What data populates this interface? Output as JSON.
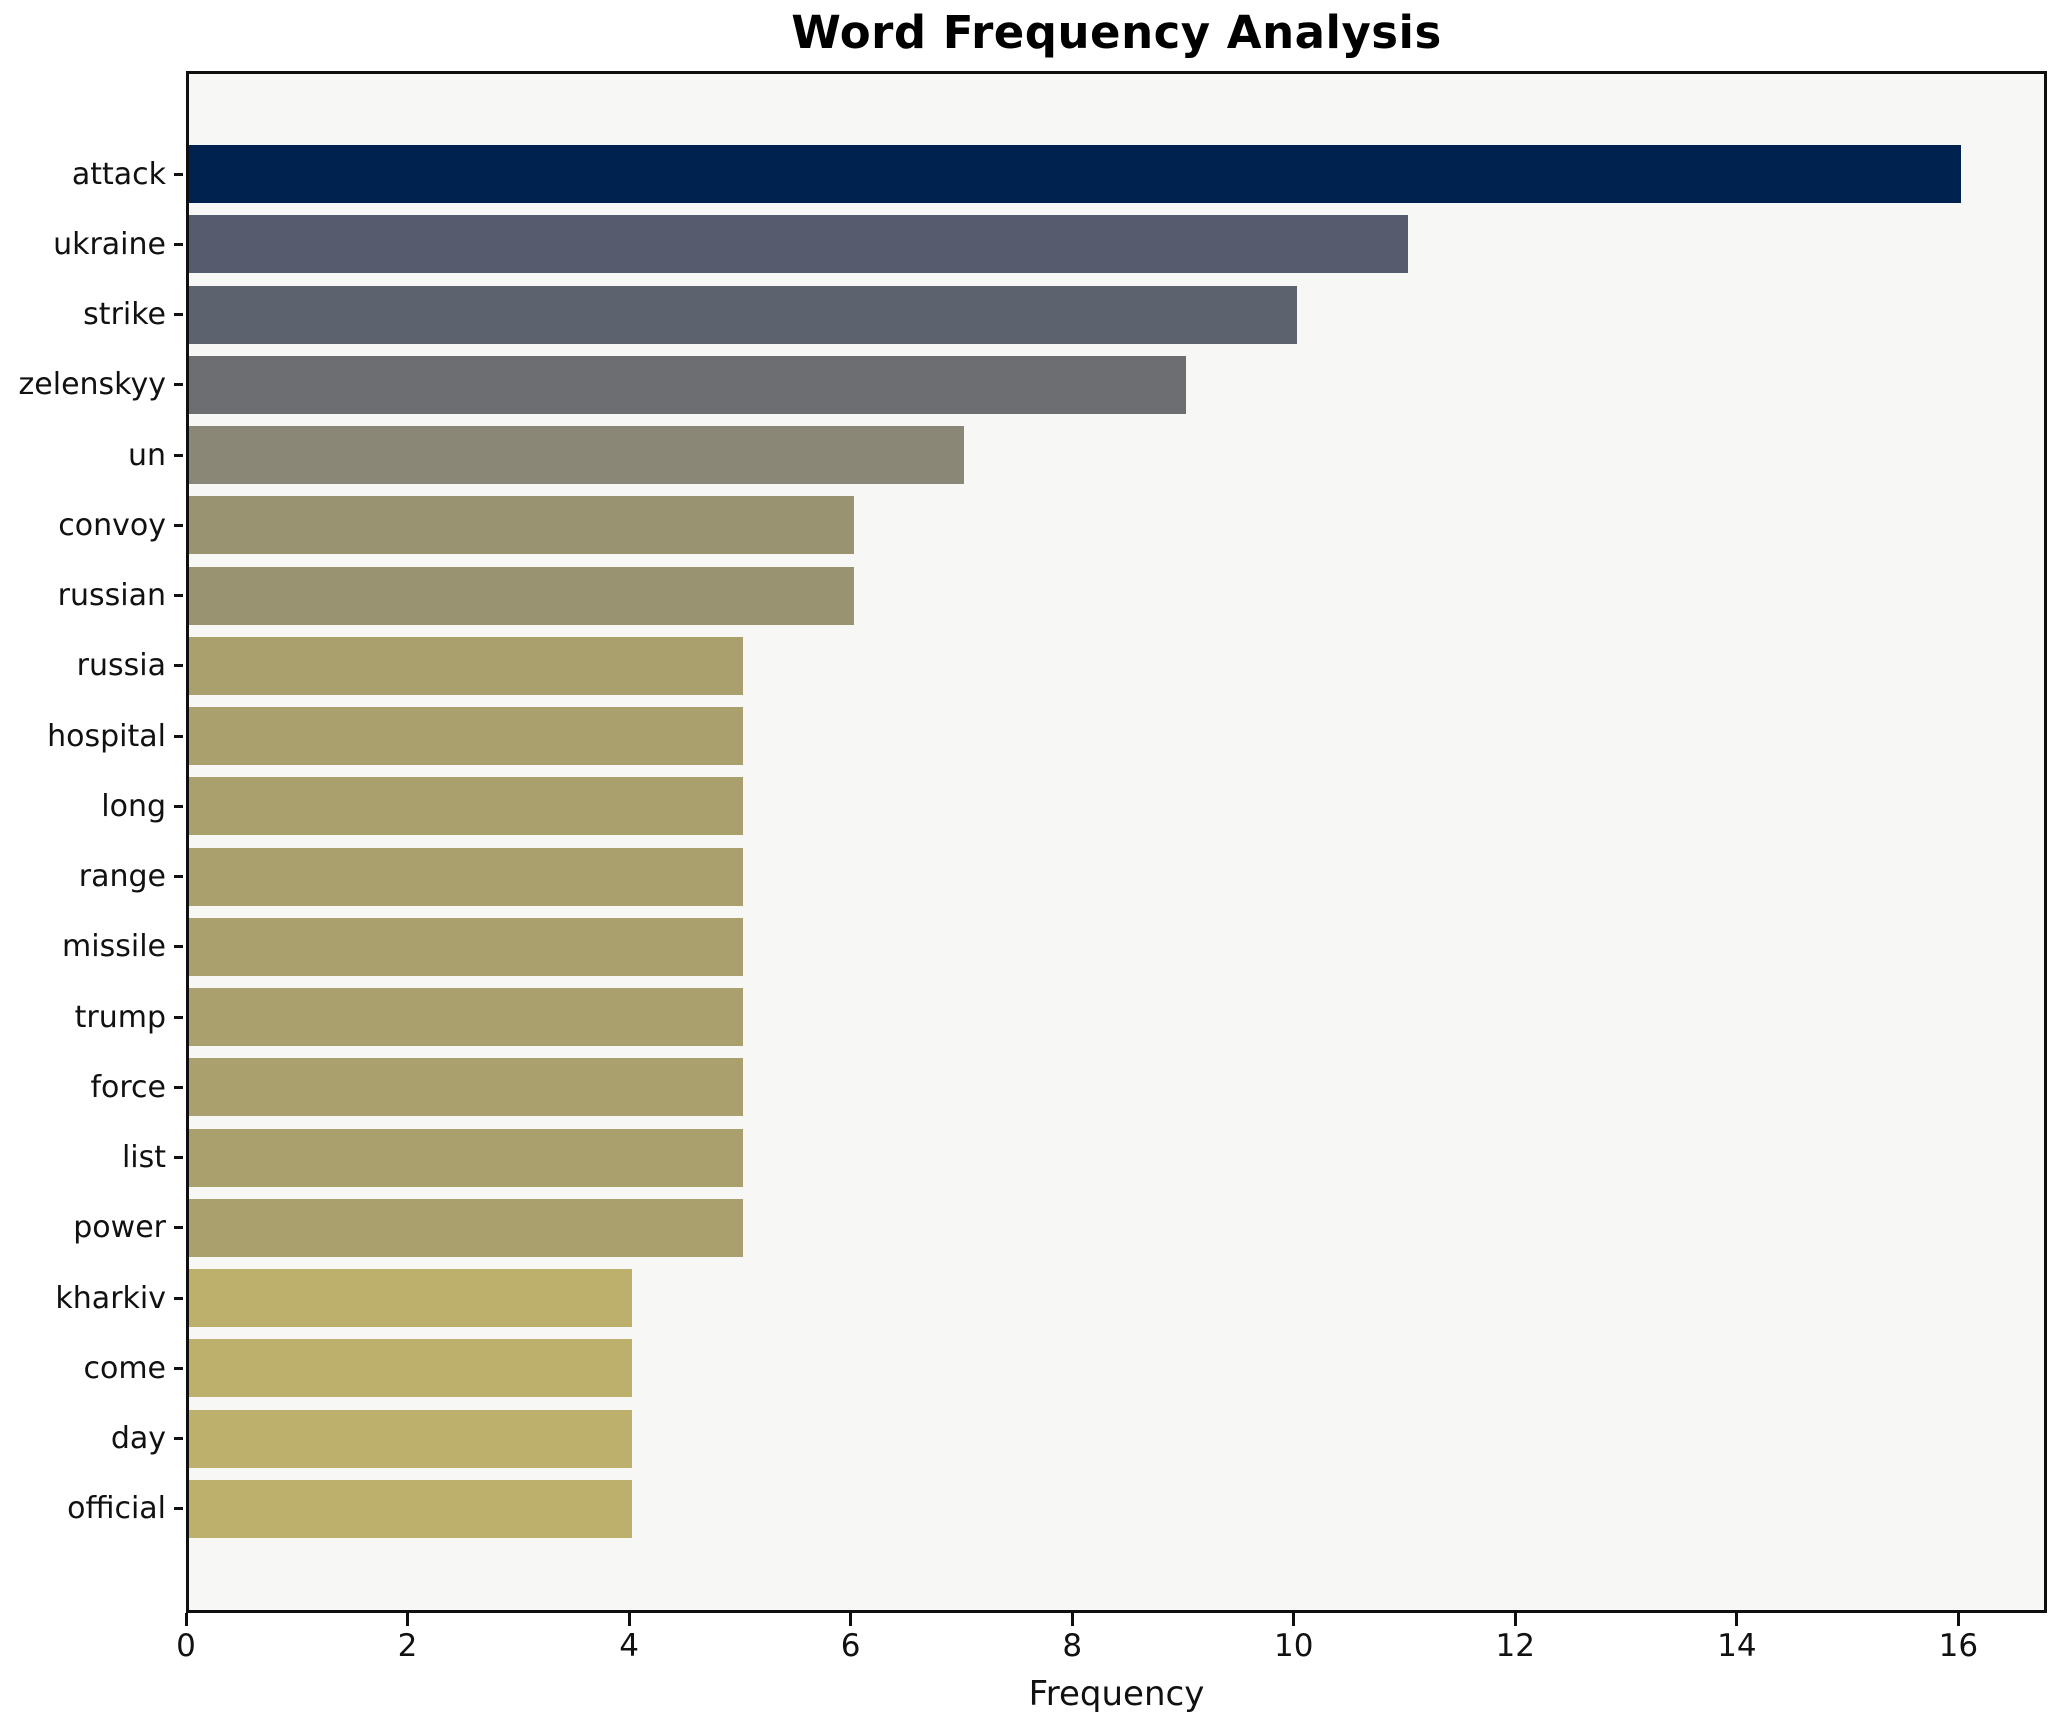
{
  "title": "Word Frequency Analysis",
  "chart_data": {
    "type": "bar",
    "orientation": "horizontal",
    "title": "Word Frequency Analysis",
    "xlabel": "Frequency",
    "ylabel": "",
    "categories": [
      "attack",
      "ukraine",
      "strike",
      "zelenskyy",
      "un",
      "convoy",
      "russian",
      "russia",
      "hospital",
      "long",
      "range",
      "missile",
      "trump",
      "force",
      "list",
      "power",
      "kharkiv",
      "come",
      "day",
      "official"
    ],
    "values": [
      16,
      11,
      10,
      9,
      7,
      6,
      6,
      5,
      5,
      5,
      5,
      5,
      5,
      5,
      5,
      5,
      4,
      4,
      4,
      4
    ],
    "bar_colors": [
      "#00224e",
      "#545c6d",
      "#5d636e",
      "#6c6e71",
      "#8a8777",
      "#999372",
      "#999372",
      "#aaa06e",
      "#aaa06e",
      "#aaa06e",
      "#aaa06e",
      "#aaa06e",
      "#aaa06e",
      "#aaa06e",
      "#aaa06e",
      "#aaa06e",
      "#bcb06c",
      "#bcb06c",
      "#bcb06c",
      "#bcb06c"
    ],
    "xticks": [
      0,
      2,
      4,
      6,
      8,
      10,
      12,
      14,
      16
    ],
    "xlim": [
      0,
      16.8
    ],
    "grid": false,
    "legend": "none",
    "colors": {
      "plot_background": "#f7f7f6",
      "figure_background": "#ffffff",
      "spine": "#0f0f0f",
      "text": "#111111"
    }
  }
}
